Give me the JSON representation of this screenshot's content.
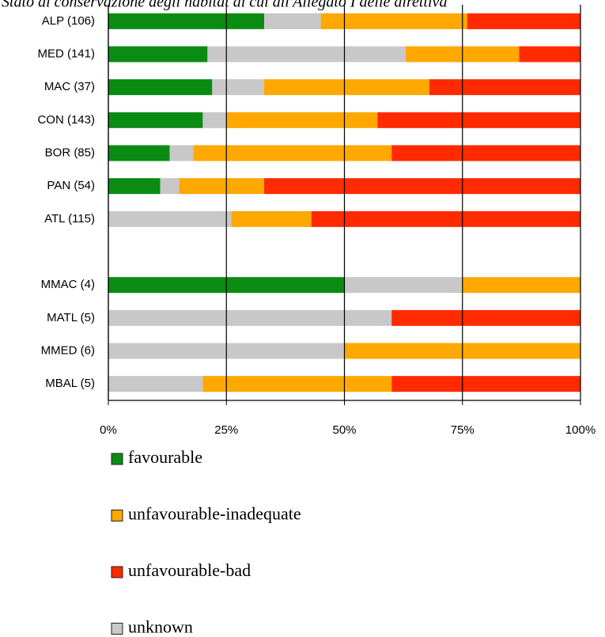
{
  "chart_data": {
    "type": "stacked_barh",
    "title": "Stato di conservazione degli habitat di cui all'Allegato I delle direttiva",
    "categories": [
      "ALP (106)",
      "MED (141)",
      "MAC (37)",
      "CON (143)",
      "BOR (85)",
      "PAN (54)",
      "ATL (115)",
      null,
      "MMAC (4)",
      "MATL (5)",
      "MMED (6)",
      "MBAL (5)"
    ],
    "series": [
      {
        "name": "favourable",
        "color": "#0a8c12",
        "values": [
          33,
          21,
          22,
          20,
          13,
          11,
          0,
          null,
          50,
          0,
          0,
          0
        ]
      },
      {
        "name": "unknown",
        "color": "#c8c8c8",
        "values": [
          12,
          42,
          11,
          5,
          5,
          4,
          26,
          null,
          25,
          60,
          50,
          20
        ]
      },
      {
        "name": "unfavourable-inadequate",
        "color": "#ffa800",
        "values": [
          31,
          24,
          35,
          32,
          42,
          18,
          17,
          null,
          25,
          0,
          50,
          40
        ]
      },
      {
        "name": "unfavourable-bad",
        "color": "#ff2a00",
        "values": [
          24,
          13,
          32,
          43,
          40,
          67,
          57,
          null,
          0,
          40,
          0,
          40
        ]
      }
    ],
    "legend_order": [
      "favourable",
      "unfavourable-inadequate",
      "unfavourable-bad",
      "unknown"
    ],
    "xlim": [
      0,
      100
    ],
    "xticks": [
      {
        "value": 0,
        "label": "0%"
      },
      {
        "value": 25,
        "label": "25%"
      },
      {
        "value": 50,
        "label": "50%"
      },
      {
        "value": 75,
        "label": "75%"
      },
      {
        "value": 100,
        "label": "100%"
      }
    ],
    "grid": true
  }
}
